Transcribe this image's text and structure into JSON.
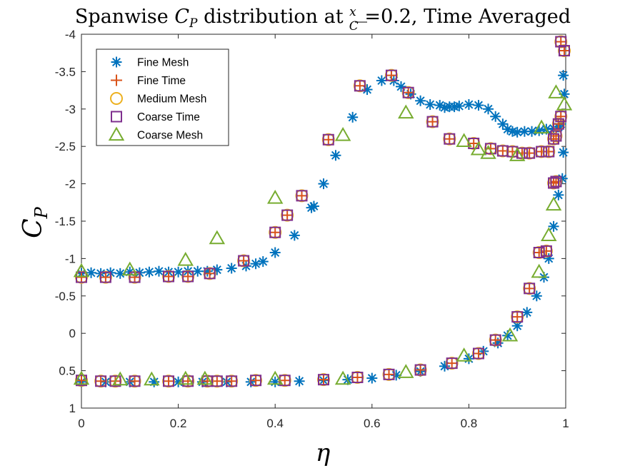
{
  "chart_data": {
    "type": "scatter",
    "title": "Spanwise C_P distribution at x/C =0.2, Time Averaged",
    "title_parts": {
      "prefix": "Spanwise ",
      "cp_main": "C",
      "cp_sub": "P",
      "middle": " distribution at ",
      "frac_num": "x",
      "frac_den": "C",
      "suffix": " =0.2, Time Averaged"
    },
    "xlabel": "η",
    "ylabel": "C_P",
    "ylabel_parts": {
      "main": "C",
      "sub": "P"
    },
    "xlim": [
      0,
      1
    ],
    "ylim": [
      -4,
      1
    ],
    "y_reversed": true,
    "x_ticks": [
      "0",
      "0.2",
      "0.4",
      "0.6",
      "0.8",
      "1"
    ],
    "x_tick_values": [
      0,
      0.2,
      0.4,
      0.6,
      0.8,
      1
    ],
    "y_ticks": [
      "-4",
      "-3.5",
      "-3",
      "-2.5",
      "-2",
      "-1.5",
      "-1",
      "-0.5",
      "0",
      "0.5",
      "1"
    ],
    "y_tick_values": [
      -4,
      -3.5,
      -3,
      -2.5,
      -2,
      -1.5,
      -1,
      -0.5,
      0,
      0.5,
      1
    ],
    "grid": false,
    "legend_position": "top-left",
    "series": [
      {
        "name": "Fine Mesh",
        "marker": "asterisk",
        "color": "#0072BD",
        "points": [
          [
            0.0,
            -0.8
          ],
          [
            0.02,
            -0.81
          ],
          [
            0.04,
            -0.8
          ],
          [
            0.06,
            -0.81
          ],
          [
            0.08,
            -0.8
          ],
          [
            0.1,
            -0.82
          ],
          [
            0.12,
            -0.81
          ],
          [
            0.14,
            -0.82
          ],
          [
            0.16,
            -0.83
          ],
          [
            0.18,
            -0.82
          ],
          [
            0.2,
            -0.82
          ],
          [
            0.22,
            -0.83
          ],
          [
            0.24,
            -0.83
          ],
          [
            0.26,
            -0.83
          ],
          [
            0.28,
            -0.85
          ],
          [
            0.31,
            -0.87
          ],
          [
            0.34,
            -0.9
          ],
          [
            0.36,
            -0.93
          ],
          [
            0.375,
            -0.96
          ],
          [
            0.4,
            -1.08
          ],
          [
            0.44,
            -1.31
          ],
          [
            0.475,
            -1.68
          ],
          [
            0.48,
            -1.7
          ],
          [
            0.5,
            -2.0
          ],
          [
            0.525,
            -2.38
          ],
          [
            0.56,
            -2.89
          ],
          [
            0.59,
            -3.26
          ],
          [
            0.62,
            -3.38
          ],
          [
            0.645,
            -3.38
          ],
          [
            0.66,
            -3.3
          ],
          [
            0.68,
            -3.2
          ],
          [
            0.7,
            -3.11
          ],
          [
            0.72,
            -3.06
          ],
          [
            0.74,
            -3.05
          ],
          [
            0.75,
            -3.02
          ],
          [
            0.76,
            -3.03
          ],
          [
            0.77,
            -3.03
          ],
          [
            0.78,
            -3.04
          ],
          [
            0.8,
            -3.06
          ],
          [
            0.82,
            -3.05
          ],
          [
            0.84,
            -3.0
          ],
          [
            0.855,
            -2.9
          ],
          [
            0.87,
            -2.8
          ],
          [
            0.88,
            -2.73
          ],
          [
            0.89,
            -2.7
          ],
          [
            0.9,
            -2.69
          ],
          [
            0.915,
            -2.7
          ],
          [
            0.93,
            -2.7
          ],
          [
            0.945,
            -2.71
          ],
          [
            0.96,
            -2.73
          ],
          [
            0.975,
            -2.74
          ],
          [
            0.985,
            -2.76
          ],
          [
            0.99,
            -2.8
          ],
          [
            0.995,
            -2.42
          ],
          [
            0.997,
            -3.2
          ],
          [
            0.995,
            -3.45
          ],
          [
            0.0,
            0.65
          ],
          [
            0.05,
            0.65
          ],
          [
            0.1,
            0.65
          ],
          [
            0.15,
            0.65
          ],
          [
            0.2,
            0.65
          ],
          [
            0.25,
            0.65
          ],
          [
            0.3,
            0.65
          ],
          [
            0.35,
            0.65
          ],
          [
            0.4,
            0.65
          ],
          [
            0.45,
            0.64
          ],
          [
            0.5,
            0.63
          ],
          [
            0.55,
            0.62
          ],
          [
            0.6,
            0.6
          ],
          [
            0.65,
            0.56
          ],
          [
            0.7,
            0.51
          ],
          [
            0.75,
            0.44
          ],
          [
            0.8,
            0.34
          ],
          [
            0.83,
            0.24
          ],
          [
            0.86,
            0.13
          ],
          [
            0.88,
            0.03
          ],
          [
            0.9,
            -0.1
          ],
          [
            0.92,
            -0.28
          ],
          [
            0.94,
            -0.5
          ],
          [
            0.955,
            -0.75
          ],
          [
            0.965,
            -1.0
          ],
          [
            0.975,
            -1.43
          ],
          [
            0.985,
            -1.85
          ],
          [
            0.993,
            -2.07
          ]
        ]
      },
      {
        "name": "Fine Time",
        "marker": "plus",
        "color": "#D95319",
        "points": [
          [
            0.0,
            -0.75
          ],
          [
            0.05,
            -0.75
          ],
          [
            0.11,
            -0.75
          ],
          [
            0.18,
            -0.76
          ],
          [
            0.22,
            -0.76
          ],
          [
            0.265,
            -0.8
          ],
          [
            0.335,
            -0.97
          ],
          [
            0.4,
            -1.35
          ],
          [
            0.425,
            -1.58
          ],
          [
            0.455,
            -1.84
          ],
          [
            0.51,
            -2.59
          ],
          [
            0.575,
            -3.31
          ],
          [
            0.64,
            -3.45
          ],
          [
            0.675,
            -3.22
          ],
          [
            0.725,
            -2.83
          ],
          [
            0.76,
            -2.6
          ],
          [
            0.81,
            -2.54
          ],
          [
            0.845,
            -2.47
          ],
          [
            0.87,
            -2.44
          ],
          [
            0.89,
            -2.43
          ],
          [
            0.91,
            -2.41
          ],
          [
            0.925,
            -2.41
          ],
          [
            0.95,
            -2.43
          ],
          [
            0.965,
            -2.43
          ],
          [
            0.975,
            -2.6
          ],
          [
            0.98,
            -2.64
          ],
          [
            0.985,
            -2.8
          ],
          [
            0.99,
            -2.9
          ],
          [
            0.99,
            -3.9
          ],
          [
            0.997,
            -3.78
          ],
          [
            0.0,
            0.63
          ],
          [
            0.04,
            0.64
          ],
          [
            0.07,
            0.64
          ],
          [
            0.11,
            0.64
          ],
          [
            0.18,
            0.64
          ],
          [
            0.22,
            0.64
          ],
          [
            0.26,
            0.64
          ],
          [
            0.28,
            0.64
          ],
          [
            0.31,
            0.64
          ],
          [
            0.36,
            0.63
          ],
          [
            0.42,
            0.63
          ],
          [
            0.5,
            0.62
          ],
          [
            0.57,
            0.59
          ],
          [
            0.635,
            0.55
          ],
          [
            0.7,
            0.49
          ],
          [
            0.765,
            0.4
          ],
          [
            0.82,
            0.27
          ],
          [
            0.855,
            0.09
          ],
          [
            0.9,
            -0.22
          ],
          [
            0.925,
            -0.6
          ],
          [
            0.945,
            -1.08
          ],
          [
            0.96,
            -1.1
          ],
          [
            0.975,
            -2.01
          ],
          [
            0.98,
            -2.03
          ]
        ]
      },
      {
        "name": "Medium Mesh",
        "marker": "circle",
        "color": "#EDB120",
        "points": [
          [
            0.0,
            -0.75
          ],
          [
            0.05,
            -0.75
          ],
          [
            0.11,
            -0.75
          ],
          [
            0.18,
            -0.76
          ],
          [
            0.22,
            -0.76
          ],
          [
            0.265,
            -0.8
          ],
          [
            0.335,
            -0.97
          ],
          [
            0.4,
            -1.35
          ],
          [
            0.425,
            -1.58
          ],
          [
            0.455,
            -1.84
          ],
          [
            0.51,
            -2.59
          ],
          [
            0.575,
            -3.31
          ],
          [
            0.64,
            -3.45
          ],
          [
            0.675,
            -3.22
          ],
          [
            0.725,
            -2.83
          ],
          [
            0.76,
            -2.6
          ],
          [
            0.81,
            -2.54
          ],
          [
            0.845,
            -2.47
          ],
          [
            0.87,
            -2.44
          ],
          [
            0.89,
            -2.43
          ],
          [
            0.91,
            -2.41
          ],
          [
            0.925,
            -2.41
          ],
          [
            0.95,
            -2.43
          ],
          [
            0.965,
            -2.43
          ],
          [
            0.975,
            -2.6
          ],
          [
            0.98,
            -2.64
          ],
          [
            0.985,
            -2.8
          ],
          [
            0.99,
            -2.9
          ],
          [
            0.99,
            -3.9
          ],
          [
            0.997,
            -3.78
          ],
          [
            0.0,
            0.63
          ],
          [
            0.04,
            0.64
          ],
          [
            0.07,
            0.64
          ],
          [
            0.11,
            0.64
          ],
          [
            0.18,
            0.64
          ],
          [
            0.22,
            0.64
          ],
          [
            0.26,
            0.64
          ],
          [
            0.28,
            0.64
          ],
          [
            0.31,
            0.64
          ],
          [
            0.36,
            0.63
          ],
          [
            0.42,
            0.63
          ],
          [
            0.5,
            0.62
          ],
          [
            0.57,
            0.59
          ],
          [
            0.635,
            0.55
          ],
          [
            0.7,
            0.49
          ],
          [
            0.765,
            0.4
          ],
          [
            0.82,
            0.27
          ],
          [
            0.855,
            0.09
          ],
          [
            0.9,
            -0.22
          ],
          [
            0.925,
            -0.6
          ],
          [
            0.945,
            -1.08
          ],
          [
            0.96,
            -1.1
          ],
          [
            0.975,
            -2.01
          ],
          [
            0.98,
            -2.03
          ]
        ]
      },
      {
        "name": "Coarse Time",
        "marker": "square",
        "color": "#7E2F8E",
        "points": [
          [
            0.0,
            -0.75
          ],
          [
            0.05,
            -0.75
          ],
          [
            0.11,
            -0.75
          ],
          [
            0.18,
            -0.76
          ],
          [
            0.22,
            -0.76
          ],
          [
            0.265,
            -0.8
          ],
          [
            0.335,
            -0.97
          ],
          [
            0.4,
            -1.35
          ],
          [
            0.425,
            -1.58
          ],
          [
            0.455,
            -1.84
          ],
          [
            0.51,
            -2.59
          ],
          [
            0.575,
            -3.31
          ],
          [
            0.64,
            -3.45
          ],
          [
            0.675,
            -3.22
          ],
          [
            0.725,
            -2.83
          ],
          [
            0.76,
            -2.6
          ],
          [
            0.81,
            -2.54
          ],
          [
            0.845,
            -2.47
          ],
          [
            0.87,
            -2.44
          ],
          [
            0.89,
            -2.43
          ],
          [
            0.91,
            -2.41
          ],
          [
            0.925,
            -2.41
          ],
          [
            0.95,
            -2.43
          ],
          [
            0.965,
            -2.43
          ],
          [
            0.975,
            -2.6
          ],
          [
            0.98,
            -2.64
          ],
          [
            0.985,
            -2.8
          ],
          [
            0.99,
            -2.9
          ],
          [
            0.99,
            -3.9
          ],
          [
            0.997,
            -3.78
          ],
          [
            0.0,
            0.63
          ],
          [
            0.04,
            0.64
          ],
          [
            0.07,
            0.64
          ],
          [
            0.11,
            0.64
          ],
          [
            0.18,
            0.64
          ],
          [
            0.22,
            0.64
          ],
          [
            0.26,
            0.64
          ],
          [
            0.28,
            0.64
          ],
          [
            0.31,
            0.64
          ],
          [
            0.36,
            0.63
          ],
          [
            0.42,
            0.63
          ],
          [
            0.5,
            0.62
          ],
          [
            0.57,
            0.59
          ],
          [
            0.635,
            0.55
          ],
          [
            0.7,
            0.49
          ],
          [
            0.765,
            0.4
          ],
          [
            0.82,
            0.27
          ],
          [
            0.855,
            0.09
          ],
          [
            0.9,
            -0.22
          ],
          [
            0.925,
            -0.6
          ],
          [
            0.945,
            -1.08
          ],
          [
            0.96,
            -1.1
          ],
          [
            0.975,
            -2.01
          ],
          [
            0.98,
            -2.03
          ]
        ]
      },
      {
        "name": "Coarse Mesh",
        "marker": "triangle",
        "color": "#77AC30",
        "points": [
          [
            0.0,
            -0.83
          ],
          [
            0.1,
            -0.85
          ],
          [
            0.215,
            -0.98
          ],
          [
            0.28,
            -1.27
          ],
          [
            0.4,
            -1.81
          ],
          [
            0.54,
            -2.65
          ],
          [
            0.67,
            -2.95
          ],
          [
            0.79,
            -2.57
          ],
          [
            0.82,
            -2.46
          ],
          [
            0.84,
            -2.41
          ],
          [
            0.9,
            -2.38
          ],
          [
            0.95,
            -2.75
          ],
          [
            0.975,
            -1.72
          ],
          [
            0.965,
            -1.31
          ],
          [
            0.98,
            -3.22
          ],
          [
            0.997,
            -3.06
          ],
          [
            0.0,
            0.61
          ],
          [
            0.08,
            0.62
          ],
          [
            0.145,
            0.62
          ],
          [
            0.215,
            0.61
          ],
          [
            0.255,
            0.61
          ],
          [
            0.4,
            0.61
          ],
          [
            0.54,
            0.61
          ],
          [
            0.67,
            0.52
          ],
          [
            0.79,
            0.3
          ],
          [
            0.885,
            0.03
          ],
          [
            0.945,
            -0.82
          ]
        ]
      }
    ]
  }
}
